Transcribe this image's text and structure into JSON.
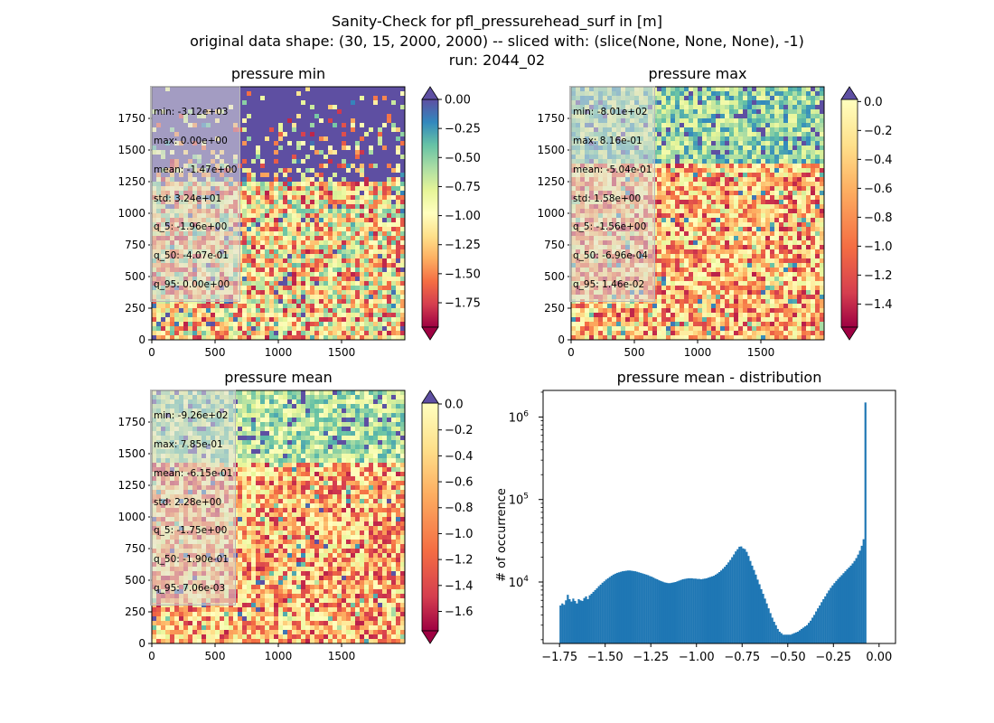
{
  "figure": {
    "title_line1": "Sanity-Check for pfl_pressurehead_surf in [m]",
    "title_line2": "original data shape: (30, 15, 2000, 2000) -- sliced with: (slice(None, None, None), -1)",
    "title_line3": "run: 2044_02"
  },
  "colormap": "Spectral",
  "over_color": "#5e4fa2",
  "under_color": "#9e0142",
  "panels": [
    {
      "title": "pressure min",
      "stats": [
        "min: -3.12e+03",
        "max: 0.00e+00",
        "mean: -1.47e+00",
        "std: 3.24e+01",
        "q_5: -1.96e+00",
        "q_50: -4.07e-01",
        "q_95: 0.00e+00"
      ],
      "xticks": [
        "0",
        "500",
        "1000",
        "1500"
      ],
      "yticks": [
        "0",
        "250",
        "500",
        "750",
        "1000",
        "1250",
        "1500",
        "1750"
      ],
      "cbar_ticks": [
        "0.00",
        "-0.25",
        "-0.50",
        "-0.75",
        "-1.00",
        "-1.25",
        "-1.50",
        "-1.75"
      ],
      "cbar_range": [
        -1.96,
        0.0
      ],
      "extend": "both"
    },
    {
      "title": "pressure max",
      "stats": [
        "min: -8.01e+02",
        "max: 8.16e-01",
        "mean: -5.04e-01",
        "std: 1.58e+00",
        "q_5: -1.56e+00",
        "q_50: -6.96e-04",
        "q_95: 1.46e-02"
      ],
      "xticks": [
        "0",
        "500",
        "1000",
        "1500"
      ],
      "yticks": [
        "0",
        "250",
        "500",
        "750",
        "1000",
        "1250",
        "1500",
        "1750"
      ],
      "cbar_ticks": [
        "0.0",
        "-0.2",
        "-0.4",
        "-0.6",
        "-0.8",
        "-1.0",
        "-1.2",
        "-1.4"
      ],
      "cbar_range": [
        -1.56,
        0.0146
      ],
      "extend": "both"
    },
    {
      "title": "pressure mean",
      "stats": [
        "min: -9.26e+02",
        "max: 7.85e-01",
        "mean: -6.15e-01",
        "std: 2.28e+00",
        "q_5: -1.75e+00",
        "q_50: -1.90e-01",
        "q_95: 7.06e-03"
      ],
      "xticks": [
        "0",
        "500",
        "1000",
        "1500"
      ],
      "yticks": [
        "0",
        "250",
        "500",
        "750",
        "1000",
        "1250",
        "1500",
        "1750"
      ],
      "cbar_ticks": [
        "0.0",
        "-0.2",
        "-0.4",
        "-0.6",
        "-0.8",
        "-1.0",
        "-1.2",
        "-1.4",
        "-1.6"
      ],
      "cbar_range": [
        -1.75,
        0.00706
      ],
      "extend": "both"
    }
  ],
  "chart_data": {
    "type": "bar",
    "title": "pressure mean - distribution",
    "xlabel": "",
    "ylabel": "# of occurrence",
    "yscale": "log",
    "xlim": [
      -1.84,
      0.09
    ],
    "ylim": [
      1800,
      2100000
    ],
    "xticks": [
      "-1.75",
      "-1.50",
      "-1.25",
      "-1.00",
      "-0.75",
      "-0.50",
      "-0.25",
      "0.00"
    ],
    "xtick_values": [
      -1.75,
      -1.5,
      -1.25,
      -1.0,
      -0.75,
      -0.5,
      -0.25,
      0.0
    ],
    "yticks": [
      "10",
      "10"
    ],
    "ytick_exponents": [
      "4",
      "5",
      "6"
    ],
    "ytick_values": [
      10000,
      100000,
      1000000
    ],
    "bar_color": "#1f77b4",
    "bin_width": 0.01,
    "bin_starts": [
      -1.75,
      -1.74,
      -1.73,
      -1.72,
      -1.71,
      -1.7,
      -1.69,
      -1.68,
      -1.67,
      -1.66,
      -1.65,
      -1.64,
      -1.63,
      -1.62,
      -1.61,
      -1.6,
      -1.59,
      -1.58,
      -1.57,
      -1.56,
      -1.55,
      -1.54,
      -1.53,
      -1.52,
      -1.51,
      -1.5,
      -1.49,
      -1.48,
      -1.47,
      -1.46,
      -1.45,
      -1.44,
      -1.43,
      -1.42,
      -1.41,
      -1.4,
      -1.39,
      -1.38,
      -1.37,
      -1.36,
      -1.35,
      -1.34,
      -1.33,
      -1.32,
      -1.31,
      -1.3,
      -1.29,
      -1.28,
      -1.27,
      -1.26,
      -1.25,
      -1.24,
      -1.23,
      -1.22,
      -1.21,
      -1.2,
      -1.19,
      -1.18,
      -1.17,
      -1.16,
      -1.15,
      -1.14,
      -1.13,
      -1.12,
      -1.11,
      -1.1,
      -1.09,
      -1.08,
      -1.07,
      -1.06,
      -1.05,
      -1.04,
      -1.03,
      -1.02,
      -1.01,
      -1.0,
      -0.99,
      -0.98,
      -0.97,
      -0.96,
      -0.95,
      -0.94,
      -0.93,
      -0.92,
      -0.91,
      -0.9,
      -0.89,
      -0.88,
      -0.87,
      -0.86,
      -0.85,
      -0.84,
      -0.83,
      -0.82,
      -0.81,
      -0.8,
      -0.79,
      -0.78,
      -0.77,
      -0.76,
      -0.75,
      -0.74,
      -0.73,
      -0.72,
      -0.71,
      -0.7,
      -0.69,
      -0.68,
      -0.67,
      -0.66,
      -0.65,
      -0.64,
      -0.63,
      -0.62,
      -0.61,
      -0.6,
      -0.59,
      -0.58,
      -0.57,
      -0.56,
      -0.55,
      -0.54,
      -0.53,
      -0.52,
      -0.51,
      -0.5,
      -0.49,
      -0.48,
      -0.47,
      -0.46,
      -0.45,
      -0.44,
      -0.43,
      -0.42,
      -0.41,
      -0.4,
      -0.39,
      -0.38,
      -0.37,
      -0.36,
      -0.35,
      -0.34,
      -0.33,
      -0.32,
      -0.31,
      -0.3,
      -0.29,
      -0.28,
      -0.27,
      -0.26,
      -0.25,
      -0.24,
      -0.23,
      -0.22,
      -0.21,
      -0.2,
      -0.19,
      -0.18,
      -0.17,
      -0.16,
      -0.15,
      -0.14,
      -0.13,
      -0.12,
      -0.11,
      -0.1,
      -0.09,
      -0.08,
      -0.07,
      -0.06,
      -0.05,
      -0.04,
      -0.03,
      -0.02,
      -0.01,
      0.0
    ],
    "counts": [
      5200,
      5500,
      5300,
      6000,
      7000,
      6200,
      5800,
      6300,
      5900,
      5500,
      6200,
      6000,
      5900,
      6400,
      6700,
      6200,
      6900,
      7200,
      7600,
      8000,
      8400,
      8900,
      9300,
      9800,
      10200,
      10700,
      11100,
      11500,
      11900,
      12300,
      12600,
      12900,
      13100,
      13300,
      13500,
      13600,
      13700,
      13800,
      13800,
      13700,
      13600,
      13500,
      13300,
      13100,
      12900,
      12700,
      12500,
      12300,
      12100,
      11800,
      11600,
      11300,
      11000,
      10800,
      10500,
      10300,
      10100,
      9900,
      9800,
      9700,
      9700,
      9800,
      9900,
      10000,
      10200,
      10400,
      10600,
      10800,
      10900,
      11000,
      11100,
      11100,
      11100,
      11000,
      11000,
      10900,
      10900,
      10800,
      10900,
      11000,
      11100,
      11300,
      11500,
      11700,
      11900,
      12300,
      12700,
      13200,
      13800,
      14500,
      15300,
      16200,
      17300,
      18500,
      20000,
      21600,
      23500,
      25000,
      26800,
      27000,
      25600,
      25100,
      23200,
      20700,
      18000,
      15800,
      14000,
      12300,
      10700,
      9400,
      8200,
      7200,
      6300,
      5500,
      4800,
      4200,
      3700,
      3300,
      3000,
      2700,
      2500,
      2400,
      2300,
      2300,
      2300,
      2300,
      2300,
      2350,
      2400,
      2450,
      2500,
      2600,
      2700,
      2800,
      2900,
      3000,
      3200,
      3400,
      3700,
      4000,
      4400,
      4800,
      5200,
      5700,
      6200,
      6700,
      7300,
      7900,
      8500,
      9100,
      9700,
      10300,
      10900,
      11500,
      12100,
      12800,
      13500,
      14300,
      15000,
      15800,
      16800,
      18000,
      19500,
      21500,
      24000,
      27500,
      33000,
      1500000
    ]
  }
}
